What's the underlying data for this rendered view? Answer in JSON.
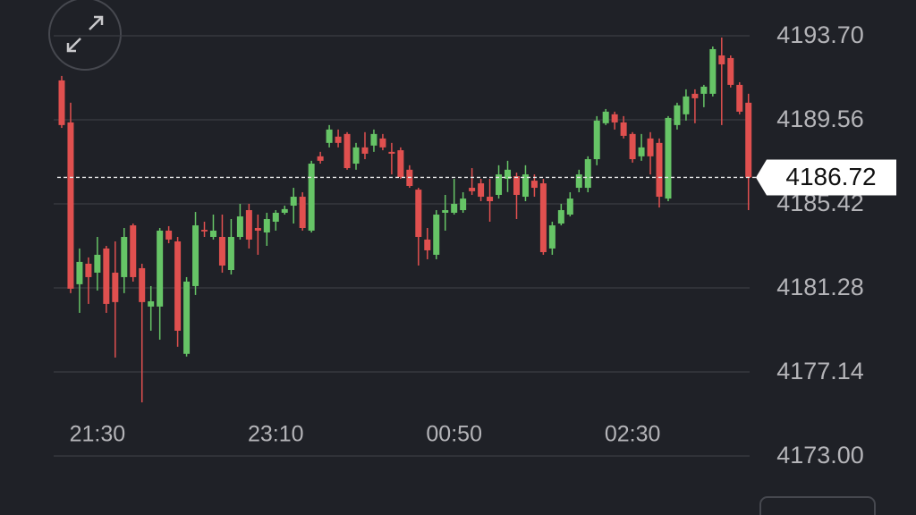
{
  "chart_data": {
    "type": "candlestick",
    "categories": [
      null,
      null,
      null,
      null,
      "21:30",
      null,
      null,
      null,
      null,
      null,
      null,
      null,
      null,
      null,
      null,
      null,
      null,
      null,
      null,
      null,
      null,
      null,
      null,
      null,
      "23:10",
      null,
      null,
      null,
      null,
      null,
      null,
      null,
      null,
      null,
      null,
      null,
      null,
      null,
      null,
      null,
      null,
      null,
      null,
      null,
      "00:50",
      null,
      null,
      null,
      null,
      null,
      null,
      null,
      null,
      null,
      null,
      null,
      null,
      null,
      null,
      null,
      null,
      null,
      null,
      null,
      "02:30",
      null,
      null,
      null,
      null,
      null,
      null,
      null,
      null,
      null,
      null,
      null,
      null,
      null
    ],
    "open": [
      4191.5,
      4189.43,
      4181.46,
      4182.47,
      4182.03,
      4183.22,
      4182.03,
      4181.81,
      4184.36,
      4182.25,
      4180.36,
      4180.36,
      4184.1,
      4183.57,
      4178.03,
      4181.37,
      4184.14,
      4183.79,
      4183.79,
      4182.16,
      4183.79,
      4185.11,
      4184.23,
      4184.01,
      4184.54,
      4184.98,
      4185.33,
      4185.77,
      4184.1,
      4187.76,
      4188.42,
      4188.73,
      4188.86,
      4187.4,
      4188.2,
      4188.29,
      4188.64,
      4187.98,
      4188.06,
      4187.1,
      4186.12,
      4183.66,
      4182.91,
      4184.98,
      4184.98,
      4185.11,
      4186.21,
      4186.43,
      4185.77,
      4185.86,
      4186.65,
      4186.78,
      4185.77,
      4186.56,
      4186.43,
      4183.22,
      4184.45,
      4184.89,
      4186.21,
      4186.21,
      4187.62,
      4189.39,
      4189.83,
      4189.43,
      4188.86,
      4187.76,
      4188.64,
      4188.42,
      4185.68,
      4189.3,
      4189.83,
      4190.84,
      4190.84,
      4190.84,
      4192.73,
      4192.6,
      4191.28,
      4190.4
    ],
    "high": [
      4191.72,
      4190.4,
      4183.22,
      4182.78,
      4183.79,
      4183.35,
      4183.57,
      4184.23,
      4184.45,
      4182.47,
      4181.37,
      4184.23,
      4184.32,
      4183.79,
      4181.81,
      4185.02,
      4184.54,
      4184.89,
      4184.89,
      4184.67,
      4185.42,
      4185.42,
      4184.89,
      4184.98,
      4185.11,
      4185.33,
      4186.21,
      4185.99,
      4187.54,
      4187.98,
      4189.3,
      4189.08,
      4188.95,
      4188.42,
      4188.95,
      4189.08,
      4188.86,
      4188.42,
      4188.2,
      4187.32,
      4186.21,
      4184.23,
      4185.11,
      4185.86,
      4186.65,
      4185.99,
      4187.18,
      4186.65,
      4186.65,
      4187.32,
      4187.54,
      4186.96,
      4187.32,
      4186.87,
      4186.65,
      4184.54,
      4185.42,
      4185.99,
      4187.1,
      4187.76,
      4189.74,
      4190.09,
      4189.96,
      4189.74,
      4188.95,
      4188.86,
      4188.95,
      4188.64,
      4189.74,
      4190.4,
      4191.06,
      4191.06,
      4191.28,
      4193.17,
      4193.61,
      4192.73,
      4191.41,
      4190.84
    ],
    "low": [
      4189.16,
      4181.02,
      4180.05,
      4180.49,
      4181.15,
      4180.05,
      4177.85,
      4181.02,
      4181.59,
      4175.64,
      4179.17,
      4178.73,
      4183.48,
      4178.38,
      4177.9,
      4180.93,
      4183.79,
      4183.66,
      4182.03,
      4181.94,
      4183.66,
      4183.22,
      4182.91,
      4183.35,
      4184.1,
      4184.89,
      4184.45,
      4184.1,
      4184.01,
      4187.4,
      4188.2,
      4188.2,
      4187.1,
      4187.1,
      4187.62,
      4187.98,
      4188.06,
      4186.87,
      4186.65,
      4186.21,
      4182.38,
      4182.69,
      4182.69,
      4184.1,
      4184.89,
      4184.98,
      4185.86,
      4185.55,
      4184.54,
      4185.68,
      4186.0,
      4184.67,
      4185.55,
      4185.77,
      4182.91,
      4182.91,
      4184.36,
      4184.8,
      4185.99,
      4185.99,
      4187.32,
      4189.3,
      4189.08,
      4188.64,
      4187.45,
      4187.54,
      4186.87,
      4185.24,
      4185.55,
      4189.08,
      4189.52,
      4189.39,
      4190.18,
      4190.71,
      4189.3,
      4191.15,
      4189.83,
      4185.11
    ],
    "close": [
      4189.3,
      4181.24,
      4182.56,
      4181.81,
      4182.91,
      4180.49,
      4180.58,
      4183.79,
      4181.81,
      4180.58,
      4180.62,
      4184.1,
      4183.66,
      4179.17,
      4181.59,
      4184.36,
      4184.06,
      4184.1,
      4182.38,
      4183.79,
      4184.8,
      4183.66,
      4184.1,
      4184.67,
      4184.98,
      4185.16,
      4185.77,
      4184.23,
      4187.4,
      4187.54,
      4189.08,
      4188.42,
      4187.18,
      4188.2,
      4187.89,
      4188.86,
      4188.2,
      4187.89,
      4186.74,
      4186.3,
      4183.79,
      4183.13,
      4184.89,
      4185.11,
      4185.42,
      4185.68,
      4186.04,
      4185.77,
      4185.55,
      4186.87,
      4187.1,
      4185.86,
      4186.87,
      4186.21,
      4183.04,
      4184.36,
      4185.11,
      4185.68,
      4186.87,
      4187.62,
      4189.52,
      4189.96,
      4189.43,
      4188.77,
      4187.62,
      4188.2,
      4187.76,
      4185.77,
      4189.65,
      4190.27,
      4190.71,
      4190.62,
      4191.19,
      4193.04,
      4192.29,
      4191.28,
      4189.96,
      4186.72
    ],
    "up_color": "#66c466",
    "down_color": "#e0504f",
    "ylim": [
      4173.0,
      4195.46
    ],
    "yticks": [
      {
        "value": 4193.7,
        "label": "4193.70"
      },
      4189.56,
      4185.42,
      4181.28,
      4177.14,
      {
        "value": 4173,
        "label": "4173.00"
      }
    ],
    "grid": true,
    "last_price": 4186.72
  }
}
